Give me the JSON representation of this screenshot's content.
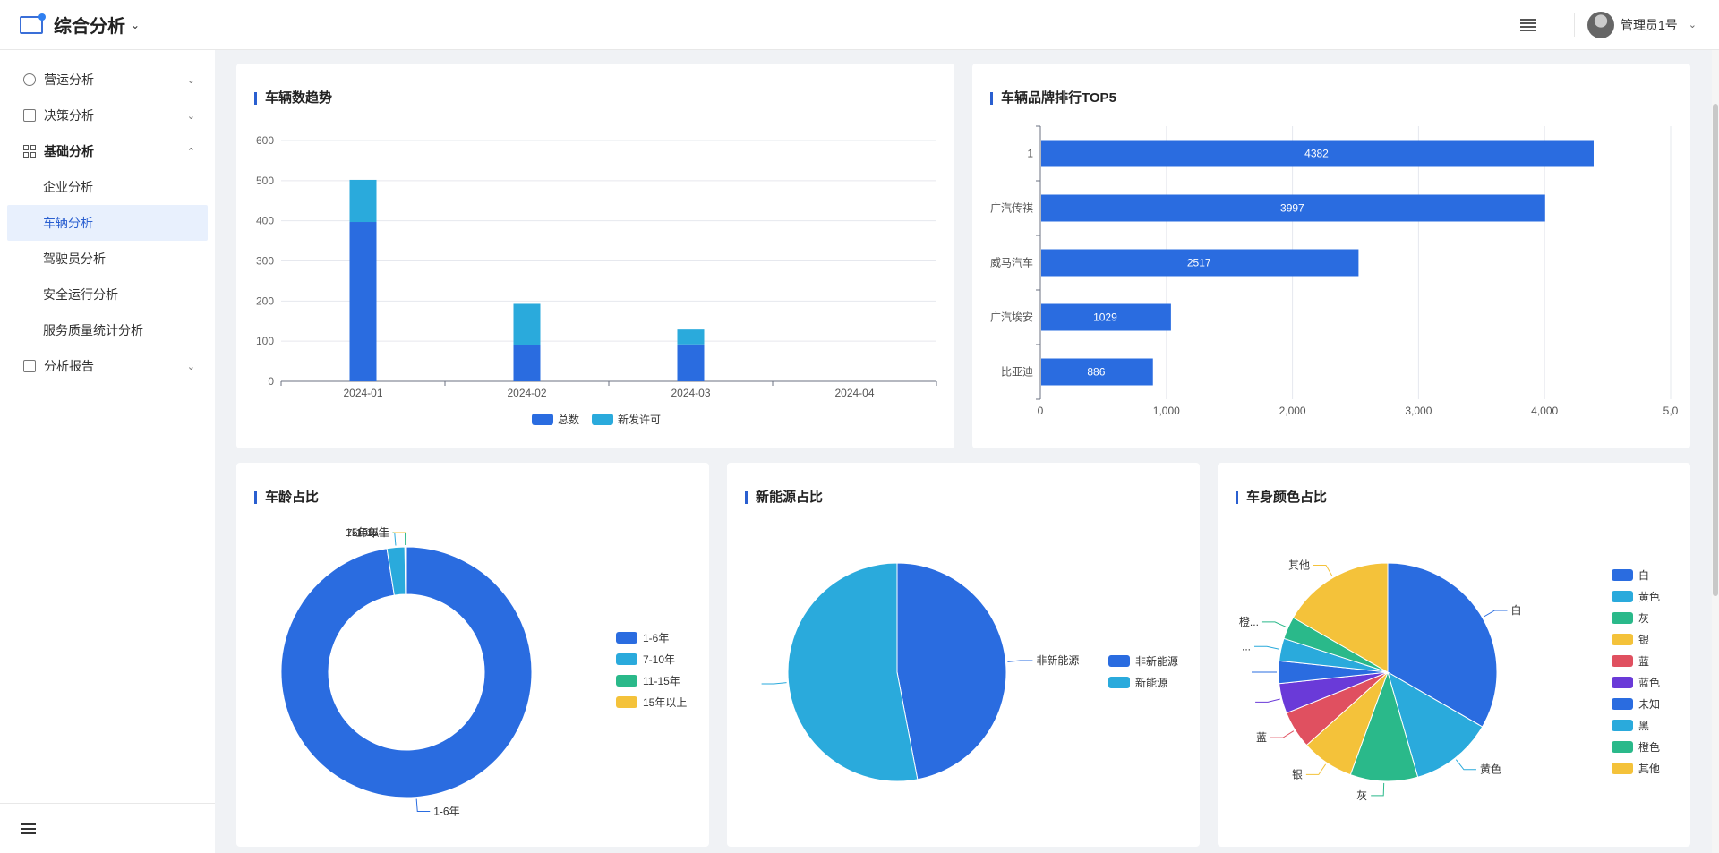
{
  "header": {
    "app_title": "综合分析",
    "user_name": "管理员1号"
  },
  "sidebar": {
    "items": [
      {
        "label": "营运分析",
        "icon": "pie-chart-icon",
        "state": "collapsed"
      },
      {
        "label": "决策分析",
        "icon": "chart-icon",
        "state": "collapsed"
      },
      {
        "label": "基础分析",
        "icon": "grid-icon",
        "state": "expanded",
        "children": [
          {
            "label": "企业分析",
            "active": false
          },
          {
            "label": "车辆分析",
            "active": true
          },
          {
            "label": "驾驶员分析",
            "active": false
          },
          {
            "label": "安全运行分析",
            "active": false
          },
          {
            "label": "服务质量统计分析",
            "active": false
          }
        ]
      },
      {
        "label": "分析报告",
        "icon": "report-icon",
        "state": "collapsed"
      }
    ]
  },
  "colors": {
    "accent": "#2a5fd0",
    "blue": "#2a6ce0",
    "cyan": "#2aaadc",
    "green": "#2ab98a",
    "yellow": "#f4c23a",
    "red": "#e05060",
    "purple": "#6a3ad8"
  },
  "cards": {
    "trend_title": "车辆数趋势",
    "brand_title": "车辆品牌排行TOP5",
    "age_title": "车龄占比",
    "energy_title": "新能源占比",
    "color_title": "车身颜色占比"
  },
  "chart_data": [
    {
      "type": "bar",
      "stacked": true,
      "categories": [
        "2024-01",
        "2024-02",
        "2024-03",
        "2024-04"
      ],
      "series": [
        {
          "name": "总数",
          "values": [
            397,
            90,
            92,
            0
          ]
        },
        {
          "name": "新发许可",
          "values": [
            105,
            103,
            37,
            0
          ]
        }
      ],
      "yticks": [
        "0",
        "100",
        "200",
        "300",
        "400",
        "500",
        "600"
      ],
      "ylim": [
        0,
        600
      ],
      "grid": true,
      "legend": "bottom"
    },
    {
      "type": "bar",
      "orientation": "horizontal",
      "categories": [
        "1",
        "广汽传祺",
        "威马汽车",
        "广汽埃安",
        "比亚迪"
      ],
      "values": [
        4382,
        3997,
        2517,
        1029,
        886
      ],
      "value_labels": [
        "4382",
        "3997",
        "2517",
        "1029",
        "886"
      ],
      "xticks": [
        "0",
        "1,000",
        "2,000",
        "3,000",
        "4,000",
        "5,0"
      ],
      "xlim": [
        0,
        5000
      ],
      "grid": true
    },
    {
      "type": "pie",
      "donut": true,
      "labels": [
        "1-6年",
        "7-10年",
        "11-15年",
        "15年以上"
      ],
      "values": [
        97.5,
        2.3,
        0.1,
        0.1
      ],
      "legend": "right"
    },
    {
      "type": "pie",
      "labels": [
        "非新能源",
        "新能源"
      ],
      "values": [
        47,
        53
      ],
      "legend": "right"
    },
    {
      "type": "pie",
      "labels": [
        "白",
        "黄色",
        "灰",
        "银",
        "蓝",
        "蓝色",
        "未知",
        "黑",
        "橙色",
        "其他"
      ],
      "values": [
        30,
        11,
        9,
        7,
        5,
        4,
        3,
        3,
        3,
        15
      ],
      "callouts": [
        "白",
        "黄色",
        "灰",
        "银",
        "蓝",
        "",
        "",
        "...",
        "橙...",
        "其他"
      ],
      "legend": "right"
    }
  ]
}
